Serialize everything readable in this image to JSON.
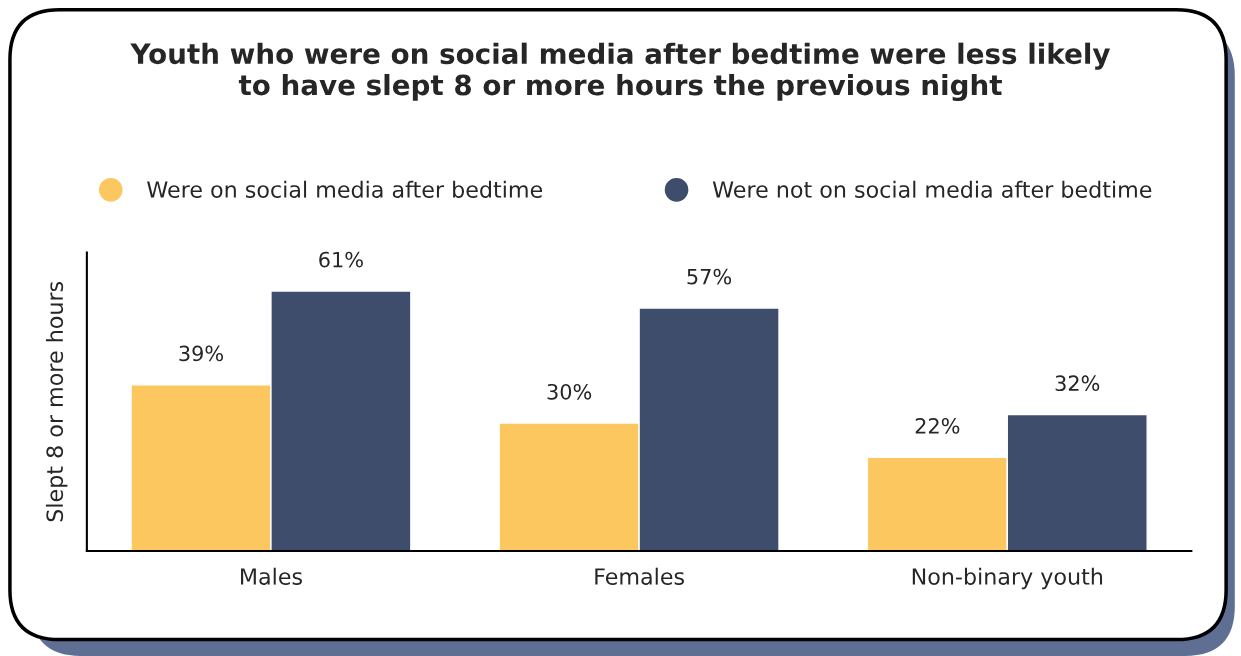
{
  "chart_data": {
    "type": "bar",
    "title": "Youth who were on social media after bedtime were less likely\nto have slept 8 or more hours the previous night",
    "ylabel": "Slept 8 or more hours",
    "categories": [
      "Males",
      "Females",
      "Non-binary youth"
    ],
    "series": [
      {
        "name": "Were on social media after bedtime",
        "color": "#fdc760",
        "values": [
          39,
          30,
          22
        ],
        "value_labels": [
          "39%",
          "30%",
          "22%"
        ]
      },
      {
        "name": "Were not on social media after bedtime",
        "color": "#3d4d6b",
        "values": [
          61,
          57,
          32
        ],
        "value_labels": [
          "61%",
          "57%",
          "32%"
        ]
      }
    ],
    "ylim": [
      0,
      70
    ],
    "tick_labels": "x",
    "grid": false,
    "legend": "top",
    "marker": "circle"
  }
}
